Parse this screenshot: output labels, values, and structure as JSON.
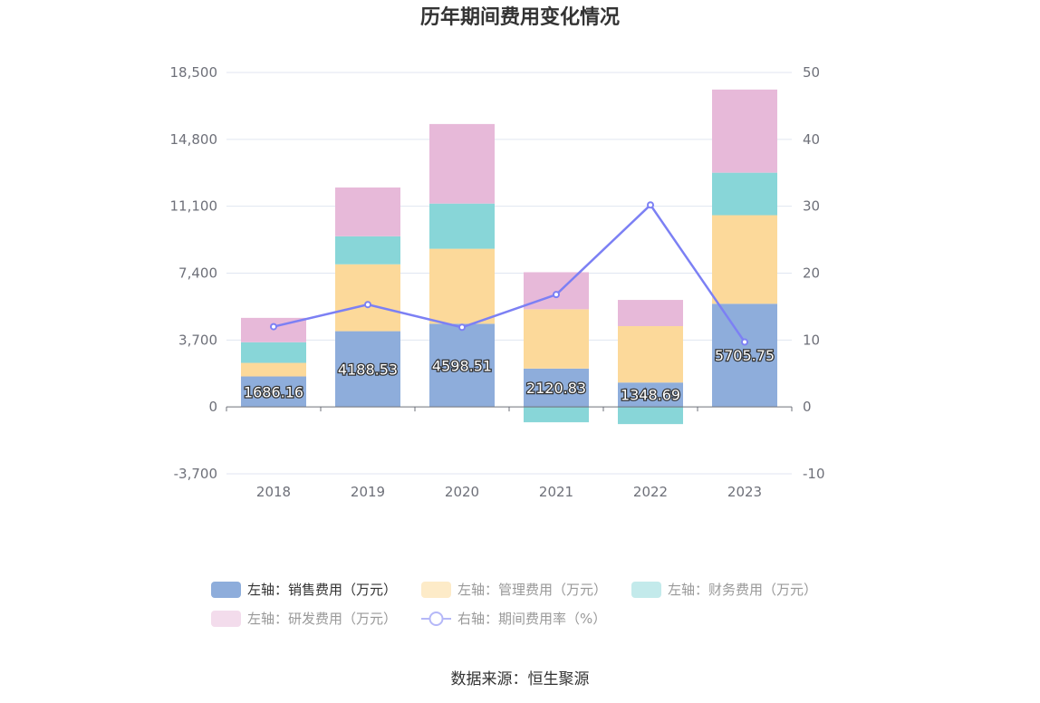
{
  "source_text": "数据来源：恒生聚源",
  "chart_data": {
    "type": "bar",
    "title": "历年期间费用变化情况",
    "categories": [
      "2018",
      "2019",
      "2020",
      "2021",
      "2022",
      "2023"
    ],
    "y_left": {
      "min": -3700,
      "max": 18500,
      "ticks": [
        -3700,
        0,
        3700,
        7400,
        11100,
        14800,
        18500
      ],
      "tick_labels": [
        "-3,700",
        "0",
        "3,700",
        "7,400",
        "11,100",
        "14,800",
        "18,500"
      ]
    },
    "y_right": {
      "min": -10,
      "max": 50,
      "ticks": [
        -10,
        0,
        10,
        20,
        30,
        40,
        50
      ],
      "tick_labels": [
        "-10",
        "0",
        "10",
        "20",
        "30",
        "40",
        "50"
      ]
    },
    "stacked": true,
    "grid": true,
    "legend_position": "bottom",
    "series": [
      {
        "name": "左轴：销售费用（万元）",
        "axis": "left",
        "type": "bar",
        "color": "#8eaddb",
        "values": [
          1686.16,
          4188.53,
          4598.51,
          2120.83,
          1348.69,
          5705.75
        ],
        "data_labels": [
          "1686.16",
          "4188.53",
          "4598.51",
          "2120.83",
          "1348.69",
          "5705.75"
        ]
      },
      {
        "name": "左轴：管理费用（万元）",
        "axis": "left",
        "type": "bar",
        "color": "#fcd99a",
        "values": [
          750,
          3700,
          4150,
          3280,
          3120,
          4900
        ]
      },
      {
        "name": "左轴：财务费用（万元）",
        "axis": "left",
        "type": "bar",
        "color": "#88d6d8",
        "values": [
          1140,
          1550,
          2500,
          -850,
          -950,
          2350
        ]
      },
      {
        "name": "左轴：研发费用（万元）",
        "axis": "left",
        "type": "bar",
        "color": "#e7b9d9",
        "values": [
          1350,
          2700,
          4400,
          2050,
          1450,
          4600
        ]
      },
      {
        "name": "右轴：期间费用率（%）",
        "axis": "right",
        "type": "line",
        "color": "#7c80f4",
        "values": [
          12.0,
          15.3,
          11.9,
          16.8,
          30.2,
          9.7
        ]
      }
    ]
  }
}
